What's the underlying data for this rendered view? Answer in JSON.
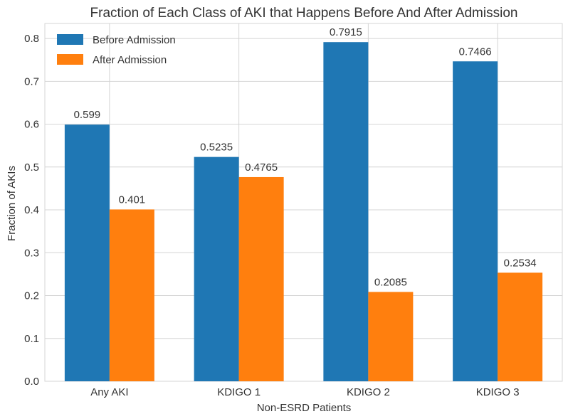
{
  "chart_data": {
    "type": "bar",
    "title": "Fraction of Each Class of AKI that Happens Before And After Admission",
    "xlabel": "Non-ESRD Patients",
    "ylabel": "Fraction of AKIs",
    "categories": [
      "Any AKI",
      "KDIGO 1",
      "KDIGO 2",
      "KDIGO 3"
    ],
    "series": [
      {
        "name": "Before Admission",
        "values": [
          0.599,
          0.5235,
          0.7915,
          0.7466
        ],
        "labels": [
          "0.599",
          "0.5235",
          "0.7915",
          "0.7466"
        ],
        "color": "#1f77b4"
      },
      {
        "name": "After Admission",
        "values": [
          0.401,
          0.4765,
          0.2085,
          0.2534
        ],
        "labels": [
          "0.401",
          "0.4765",
          "0.2085",
          "0.2534"
        ],
        "color": "#ff7f0e"
      }
    ],
    "ylim": [
      0,
      0.835
    ],
    "yticks": [
      "0.0",
      "0.1",
      "0.2",
      "0.3",
      "0.4",
      "0.5",
      "0.6",
      "0.7",
      "0.8"
    ],
    "grid": true,
    "legend_position": "top-left"
  }
}
